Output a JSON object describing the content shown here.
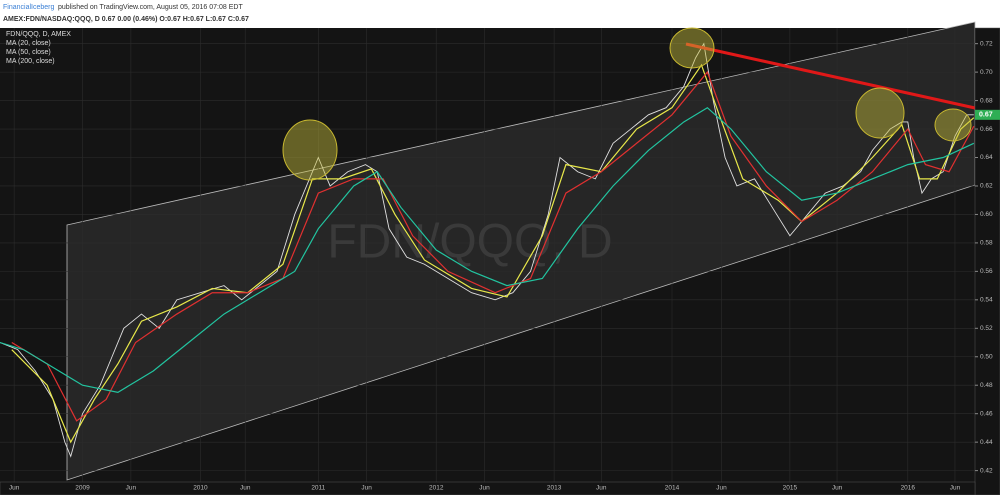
{
  "header": {
    "publisher": "FinancialIceberg",
    "published": "published on TradingView.com, August 05, 2016 07:08 EDT",
    "symbol_line": "AMEX:FDN/NASDAQ:QQQ, D  0.67 0.00 (0.46%) O:0.67 H:0.67 L:0.67 C:0.67"
  },
  "chart_data": {
    "type": "line",
    "title": "FDN/QQQ, D, AMEX",
    "watermark": "FDN/QQQ, D",
    "last_price": 0.67,
    "xlim": [
      2008.3,
      2016.57
    ],
    "ylim": [
      0.412,
      0.731
    ],
    "xticks": [
      {
        "value": 2008.42,
        "label": "Jun"
      },
      {
        "value": 2009,
        "label": "2009"
      },
      {
        "value": 2009.41,
        "label": "Jun"
      },
      {
        "value": 2010,
        "label": "2010"
      },
      {
        "value": 2010.38,
        "label": "Jun"
      },
      {
        "value": 2011,
        "label": "2011"
      },
      {
        "value": 2011.41,
        "label": "Jun"
      },
      {
        "value": 2012,
        "label": "2012"
      },
      {
        "value": 2012.41,
        "label": "Jun"
      },
      {
        "value": 2013,
        "label": "2013"
      },
      {
        "value": 2013.4,
        "label": "Jun"
      },
      {
        "value": 2014,
        "label": "2014"
      },
      {
        "value": 2014.42,
        "label": "Jun"
      },
      {
        "value": 2015,
        "label": "2015"
      },
      {
        "value": 2015.4,
        "label": "Jun"
      },
      {
        "value": 2016,
        "label": "2016"
      },
      {
        "value": 2016.4,
        "label": "Jun"
      }
    ],
    "yticks": [
      0.42,
      0.44,
      0.46,
      0.48,
      {
        "value": 0.5,
        "label": "0.50"
      },
      0.52,
      0.54,
      0.56,
      0.58,
      {
        "value": 0.6,
        "label": "0.60"
      },
      0.62,
      0.64,
      0.66,
      0.68,
      {
        "value": 0.7,
        "label": "0.70"
      },
      0.72
    ],
    "grid": true,
    "series": [
      {
        "name": "FDN/QQQ, D, AMEX",
        "color": "#e0e0e0",
        "x": [
          2008.3,
          2008.45,
          2008.6,
          2008.75,
          2008.85,
          2008.9,
          2009.0,
          2009.15,
          2009.25,
          2009.35,
          2009.5,
          2009.65,
          2009.8,
          2010.0,
          2010.2,
          2010.35,
          2010.5,
          2010.65,
          2010.8,
          2010.95,
          2011.0,
          2011.1,
          2011.25,
          2011.4,
          2011.5,
          2011.6,
          2011.75,
          2011.9,
          2012.1,
          2012.3,
          2012.5,
          2012.65,
          2012.8,
          2012.95,
          2013.05,
          2013.2,
          2013.35,
          2013.5,
          2013.65,
          2013.8,
          2013.95,
          2014.1,
          2014.2,
          2014.27,
          2014.35,
          2014.45,
          2014.55,
          2014.7,
          2014.85,
          2015.0,
          2015.15,
          2015.3,
          2015.45,
          2015.6,
          2015.7,
          2015.85,
          2015.95,
          2016.0,
          2016.05,
          2016.12,
          2016.2,
          2016.3,
          2016.4,
          2016.5,
          2016.56
        ],
        "values": [
          0.51,
          0.505,
          0.49,
          0.47,
          0.44,
          0.43,
          0.46,
          0.48,
          0.5,
          0.52,
          0.53,
          0.52,
          0.54,
          0.545,
          0.55,
          0.54,
          0.55,
          0.56,
          0.6,
          0.63,
          0.64,
          0.62,
          0.63,
          0.635,
          0.63,
          0.59,
          0.57,
          0.565,
          0.555,
          0.545,
          0.54,
          0.545,
          0.56,
          0.6,
          0.64,
          0.63,
          0.625,
          0.65,
          0.66,
          0.67,
          0.675,
          0.69,
          0.71,
          0.72,
          0.68,
          0.64,
          0.62,
          0.625,
          0.605,
          0.585,
          0.6,
          0.615,
          0.62,
          0.63,
          0.645,
          0.66,
          0.665,
          0.665,
          0.64,
          0.615,
          0.625,
          0.63,
          0.655,
          0.67,
          0.67
        ]
      },
      {
        "name": "MA (20, close)",
        "color": "#e8e84a",
        "x": [
          2008.4,
          2008.7,
          2008.9,
          2009.1,
          2009.3,
          2009.5,
          2009.8,
          2010.1,
          2010.4,
          2010.7,
          2010.95,
          2011.2,
          2011.45,
          2011.65,
          2011.9,
          2012.3,
          2012.6,
          2012.9,
          2013.1,
          2013.4,
          2013.7,
          2014.0,
          2014.25,
          2014.4,
          2014.6,
          2014.9,
          2015.1,
          2015.4,
          2015.7,
          2015.95,
          2016.1,
          2016.25,
          2016.45,
          2016.56
        ],
        "values": [
          0.505,
          0.48,
          0.44,
          0.47,
          0.495,
          0.525,
          0.535,
          0.548,
          0.545,
          0.565,
          0.625,
          0.625,
          0.632,
          0.6,
          0.568,
          0.548,
          0.542,
          0.585,
          0.635,
          0.63,
          0.66,
          0.675,
          0.705,
          0.67,
          0.625,
          0.61,
          0.595,
          0.615,
          0.64,
          0.663,
          0.625,
          0.625,
          0.66,
          0.668
        ]
      },
      {
        "name": "MA (50, close)",
        "color": "#e03030",
        "x": [
          2008.4,
          2008.7,
          2008.95,
          2009.2,
          2009.45,
          2009.8,
          2010.1,
          2010.4,
          2010.7,
          2011.0,
          2011.3,
          2011.55,
          2011.8,
          2012.1,
          2012.5,
          2012.8,
          2013.1,
          2013.4,
          2013.7,
          2014.0,
          2014.3,
          2014.5,
          2014.8,
          2015.1,
          2015.4,
          2015.7,
          2016.0,
          2016.15,
          2016.35,
          2016.56
        ],
        "values": [
          0.51,
          0.495,
          0.455,
          0.47,
          0.51,
          0.53,
          0.545,
          0.545,
          0.555,
          0.615,
          0.625,
          0.625,
          0.585,
          0.56,
          0.545,
          0.555,
          0.615,
          0.63,
          0.65,
          0.67,
          0.7,
          0.655,
          0.62,
          0.595,
          0.61,
          0.63,
          0.66,
          0.635,
          0.63,
          0.662
        ]
      },
      {
        "name": "MA (200, close)",
        "color": "#22c4a0",
        "x": [
          2008.3,
          2008.5,
          2008.8,
          2009.0,
          2009.3,
          2009.6,
          2009.9,
          2010.2,
          2010.5,
          2010.8,
          2011.0,
          2011.3,
          2011.5,
          2011.7,
          2012.0,
          2012.3,
          2012.6,
          2012.9,
          2013.2,
          2013.5,
          2013.8,
          2014.1,
          2014.3,
          2014.5,
          2014.8,
          2015.1,
          2015.4,
          2015.7,
          2016.0,
          2016.3,
          2016.56
        ],
        "values": [
          0.51,
          0.505,
          0.49,
          0.48,
          0.475,
          0.49,
          0.51,
          0.53,
          0.545,
          0.56,
          0.59,
          0.62,
          0.63,
          0.605,
          0.575,
          0.56,
          0.55,
          0.555,
          0.59,
          0.62,
          0.645,
          0.665,
          0.675,
          0.66,
          0.63,
          0.61,
          0.615,
          0.625,
          0.635,
          0.64,
          0.65
        ]
      }
    ]
  }
}
